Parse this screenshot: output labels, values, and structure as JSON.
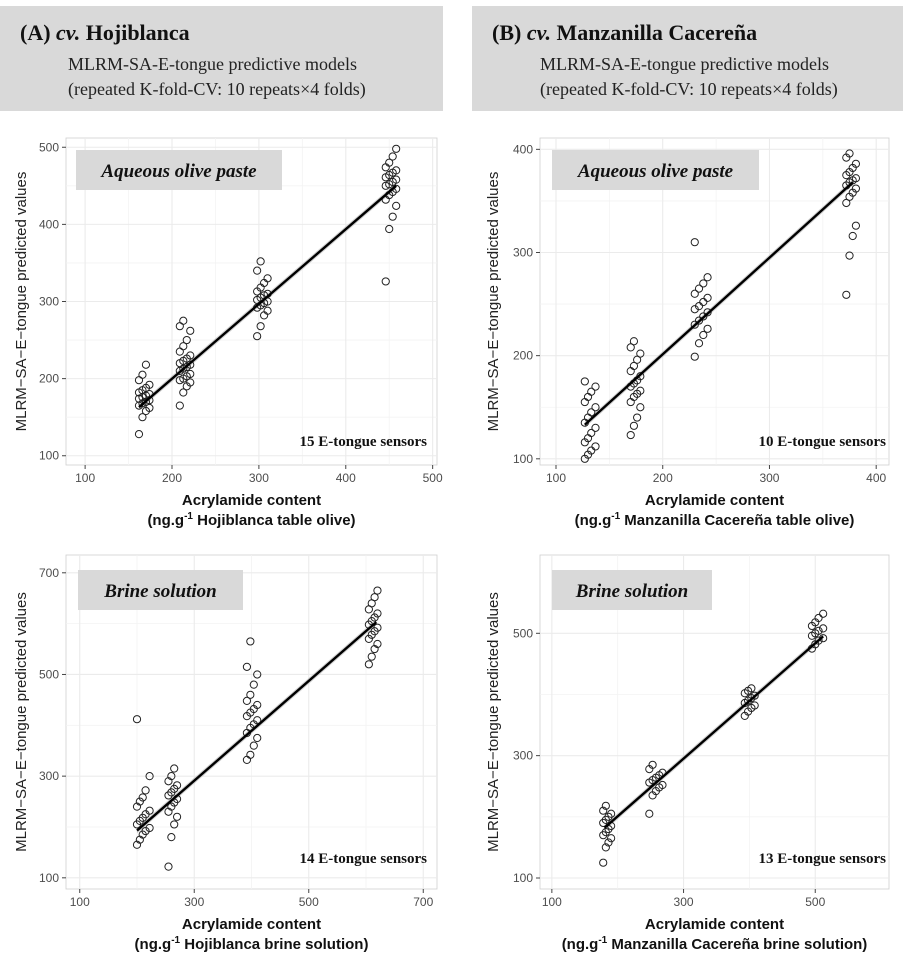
{
  "header_a": {
    "label": "(A)",
    "cv": "cv.",
    "cultivar": "Hojiblanca",
    "line1": "MLRM-SA-E-tongue predictive models",
    "line2": "(repeated K-fold-CV: 10 repeats×4 folds)"
  },
  "header_b": {
    "label": "(B)",
    "cv": "cv.",
    "cultivar": "Manzanilla Cacereña",
    "line1": "MLRM-SA-E-tongue predictive models",
    "line2": "(repeated K-fold-CV: 10 repeats×4 folds)"
  },
  "colors": {
    "header_bg": "#d9d9d9",
    "grid": "#ebebeb",
    "points": "#222222",
    "fit_line": "#000000",
    "band": "#bdbdbd"
  },
  "chart_data": [
    {
      "type": "scatter",
      "panel": "A-top",
      "box_label": "Aqueous olive paste",
      "corner_label": "15 E-tongue sensors",
      "ylabel": "MLRM−SA−E−tongue predicted values",
      "xlabel": "Acrylamide content",
      "xlabel_unit_prefix": "(ng.g",
      "xlabel_unit_sup": "-1",
      "xlabel_unit_suffix": " Hojiblanca table olive)",
      "xlim": [
        78,
        505
      ],
      "ylim": [
        88,
        512
      ],
      "xticks": [
        100,
        200,
        300,
        400,
        500
      ],
      "yticks": [
        100,
        200,
        300,
        400,
        500
      ],
      "grid": true,
      "fit_line": {
        "x": [
          162,
          458
        ],
        "y": [
          163,
          450
        ]
      },
      "clusters": [
        {
          "xs": [
            162,
            166,
            170,
            174
          ],
          "y_values": [
            128,
            150,
            158,
            162,
            165,
            168,
            170,
            172,
            174,
            176,
            178,
            180,
            182,
            185,
            188,
            192,
            198,
            205,
            218
          ]
        },
        {
          "xs": [
            209,
            213,
            217,
            221
          ],
          "y_values": [
            165,
            182,
            190,
            195,
            198,
            200,
            203,
            206,
            210,
            213,
            215,
            218,
            220,
            223,
            226,
            230,
            235,
            242,
            250,
            262,
            268,
            275
          ]
        },
        {
          "xs": [
            298,
            302,
            306,
            310
          ],
          "y_values": [
            255,
            268,
            282,
            288,
            292,
            295,
            298,
            300,
            302,
            305,
            308,
            310,
            313,
            318,
            324,
            330,
            340,
            352
          ]
        },
        {
          "xs": [
            446,
            450,
            454,
            458
          ],
          "y_values": [
            326,
            394,
            410,
            424,
            432,
            438,
            442,
            446,
            450,
            452,
            455,
            458,
            461,
            464,
            467,
            470,
            474,
            480,
            488,
            498
          ]
        }
      ]
    },
    {
      "type": "scatter",
      "panel": "B-top",
      "box_label": "Aqueous olive paste",
      "corner_label": "10 E-tongue sensors",
      "ylabel": "MLRM−SA−E−tongue predicted values",
      "xlabel": "Acrylamide content",
      "xlabel_unit_prefix": "(ng.g",
      "xlabel_unit_sup": "-1",
      "xlabel_unit_suffix": " Manzanilla Cacereña table olive)",
      "xlim": [
        85,
        412
      ],
      "ylim": [
        94,
        411
      ],
      "xticks": [
        100,
        200,
        300,
        400
      ],
      "yticks": [
        100,
        200,
        300,
        400
      ],
      "grid": true,
      "fit_line": {
        "x": [
          127,
          378
        ],
        "y": [
          133,
          368
        ]
      },
      "clusters": [
        {
          "xs": [
            127,
            130,
            133,
            137
          ],
          "y_values": [
            100,
            104,
            108,
            112,
            116,
            120,
            125,
            130,
            135,
            140,
            145,
            150,
            155,
            160,
            165,
            170,
            175
          ]
        },
        {
          "xs": [
            170,
            173,
            176,
            179
          ],
          "y_values": [
            123,
            132,
            140,
            150,
            155,
            160,
            163,
            166,
            170,
            173,
            176,
            180,
            185,
            190,
            196,
            202,
            208,
            214
          ]
        },
        {
          "xs": [
            230,
            234,
            238,
            242
          ],
          "y_values": [
            199,
            212,
            220,
            226,
            230,
            234,
            238,
            242,
            245,
            248,
            252,
            256,
            260,
            265,
            270,
            276,
            310
          ]
        },
        {
          "xs": [
            372,
            375,
            378,
            381
          ],
          "y_values": [
            259,
            297,
            316,
            326,
            348,
            354,
            358,
            362,
            365,
            368,
            370,
            372,
            375,
            378,
            382,
            386,
            392,
            396
          ]
        }
      ]
    },
    {
      "type": "scatter",
      "panel": "A-bottom",
      "box_label": "Brine solution",
      "corner_label": "14 E-tongue sensors",
      "ylabel": "MLRM−SA−E−tongue predicted values",
      "xlabel": "Acrylamide content",
      "xlabel_unit_prefix": "(ng.g",
      "xlabel_unit_sup": "-1",
      "xlabel_unit_suffix": " Hojiblanca brine solution)",
      "xlim": [
        76,
        724
      ],
      "ylim": [
        78,
        735
      ],
      "xticks": [
        100,
        300,
        500,
        700
      ],
      "yticks": [
        100,
        300,
        500,
        700
      ],
      "grid": true,
      "fit_line": {
        "x": [
          200,
          618
        ],
        "y": [
          193,
          603
        ]
      },
      "clusters": [
        {
          "xs": [
            200,
            205,
            210,
            215,
            222
          ],
          "y_values": [
            165,
            175,
            185,
            192,
            198,
            205,
            212,
            218,
            225,
            232,
            240,
            250,
            258,
            272,
            300,
            412
          ]
        },
        {
          "xs": [
            255,
            260,
            265,
            270
          ],
          "y_values": [
            122,
            180,
            205,
            220,
            230,
            240,
            248,
            255,
            262,
            268,
            275,
            282,
            290,
            300,
            315
          ]
        },
        {
          "xs": [
            392,
            398,
            404,
            410
          ],
          "y_values": [
            332,
            342,
            360,
            375,
            385,
            395,
            402,
            410,
            418,
            425,
            432,
            440,
            448,
            460,
            480,
            500,
            515,
            565
          ]
        },
        {
          "xs": [
            605,
            610,
            615,
            620
          ],
          "y_values": [
            520,
            535,
            550,
            560,
            570,
            578,
            585,
            592,
            598,
            605,
            612,
            620,
            628,
            640,
            652,
            665
          ]
        }
      ]
    },
    {
      "type": "scatter",
      "panel": "B-bottom",
      "box_label": "Brine solution",
      "corner_label": "13 E-tongue sensors",
      "ylabel": "MLRM−SA−E−tongue predicted values",
      "xlabel": "Acrylamide content",
      "xlabel_unit_prefix": "(ng.g",
      "xlabel_unit_sup": "-1",
      "xlabel_unit_suffix": " Manzanilla Cacereña brine solution)",
      "xlim": [
        82,
        612
      ],
      "ylim": [
        82,
        628
      ],
      "xticks": [
        100,
        300,
        500
      ],
      "yticks": [
        100,
        300,
        500
      ],
      "grid": true,
      "fit_line": {
        "x": [
          180,
          512
        ],
        "y": [
          182,
          495
        ]
      },
      "clusters": [
        {
          "xs": [
            178,
            182,
            186,
            190
          ],
          "y_values": [
            125,
            150,
            158,
            165,
            170,
            175,
            180,
            185,
            190,
            195,
            200,
            205,
            210,
            218
          ]
        },
        {
          "xs": [
            248,
            253,
            258,
            263,
            268
          ],
          "y_values": [
            205,
            235,
            242,
            248,
            252,
            256,
            260,
            264,
            268,
            272,
            278,
            285
          ]
        },
        {
          "xs": [
            393,
            398,
            403,
            408
          ],
          "y_values": [
            365,
            372,
            378,
            382,
            386,
            390,
            394,
            398,
            402,
            406,
            410
          ]
        },
        {
          "xs": [
            495,
            500,
            505,
            512
          ],
          "y_values": [
            475,
            482,
            488,
            492,
            496,
            500,
            504,
            508,
            512,
            518,
            525,
            532
          ]
        }
      ]
    }
  ]
}
